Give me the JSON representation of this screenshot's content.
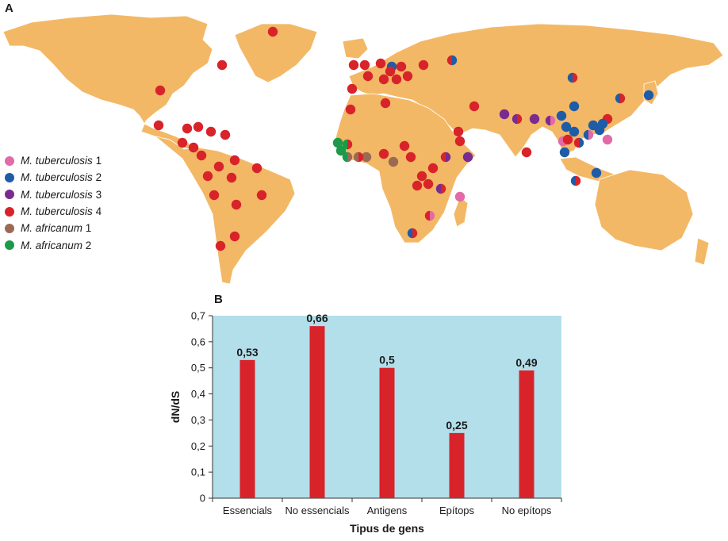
{
  "panel_a_label": "A",
  "panel_b_label": "B",
  "legend": [
    {
      "species": "M. tuberculosis",
      "lineage": "1",
      "color": "#e26aa6"
    },
    {
      "species": "M. tuberculosis",
      "lineage": "2",
      "color": "#1f5ca8"
    },
    {
      "species": "M. tuberculosis",
      "lineage": "3",
      "color": "#7a2b8f"
    },
    {
      "species": "M. tuberculosis",
      "lineage": "4",
      "color": "#d8232a"
    },
    {
      "species": "M. africanum",
      "lineage": "1",
      "color": "#9b6a55"
    },
    {
      "species": "M. africanum",
      "lineage": "2",
      "color": "#1c9a4a"
    }
  ],
  "colors": {
    "land": "#f3b866",
    "ocean": "#ffffff",
    "plot_background": "#b3dfeb",
    "bar": "#d8232a"
  },
  "chart_data": {
    "type": "bar",
    "categories": [
      "Essencials",
      "No essencials",
      "Antigens",
      "Epítops",
      "No epítops"
    ],
    "values": [
      0.53,
      0.66,
      0.5,
      0.25,
      0.49
    ],
    "value_labels": [
      "0,53",
      "0,66",
      "0,5",
      "0,25",
      "0,49"
    ],
    "title": "",
    "xlabel": "Tipus de gens",
    "ylabel": "dN/dS",
    "ylim": [
      0,
      0.7
    ],
    "yticks": [
      "0",
      "0,1",
      "0,2",
      "0,3",
      "0,4",
      "0,5",
      "0,6",
      "0,7"
    ],
    "grid": false,
    "legend": false
  }
}
